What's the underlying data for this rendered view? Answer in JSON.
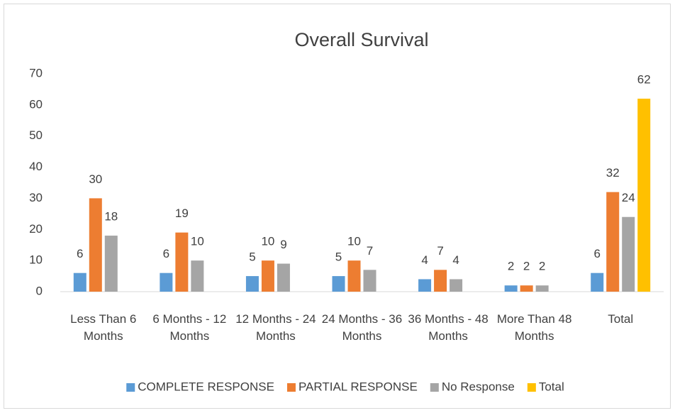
{
  "chart_data": {
    "type": "bar",
    "title": "Overall Survival",
    "categories": [
      "Less Than 6 Months",
      "6 Months - 12 Months",
      "12 Months - 24 Months",
      "24 Months - 36 Months",
      "36 Months - 48 Months",
      "More Than 48 Months",
      "Total"
    ],
    "series": [
      {
        "name": "COMPLETE RESPONSE",
        "color": "#5b9bd5",
        "values": [
          6,
          6,
          5,
          5,
          4,
          2,
          6
        ]
      },
      {
        "name": "PARTIAL RESPONSE",
        "color": "#ed7d31",
        "values": [
          30,
          19,
          10,
          10,
          7,
          2,
          32
        ]
      },
      {
        "name": "No Response",
        "color": "#a5a5a5",
        "values": [
          18,
          10,
          9,
          7,
          4,
          2,
          24
        ]
      },
      {
        "name": "Total",
        "color": "#ffc000",
        "values": [
          null,
          null,
          null,
          null,
          null,
          null,
          62
        ]
      }
    ],
    "ylim": [
      0,
      70
    ],
    "yticks": [
      0,
      10,
      20,
      30,
      40,
      50,
      60,
      70
    ],
    "grid": false,
    "legend": "bottom"
  }
}
